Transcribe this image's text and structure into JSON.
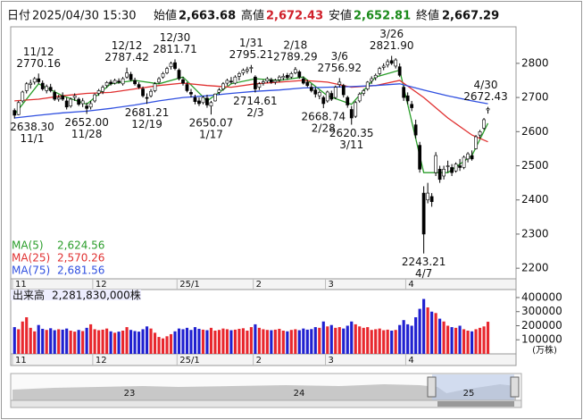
{
  "header": {
    "date_label": "日付",
    "date": "2025/04/30 15:30",
    "items": [
      {
        "label": "始値",
        "value": "2,663.68"
      },
      {
        "label": "高値",
        "value": "2,672.43"
      },
      {
        "label": "安値",
        "value": "2,652.81"
      },
      {
        "label": "終値",
        "value": "2,667.29"
      }
    ]
  },
  "chart_data": {
    "type": "candlestick",
    "categories": [
      "11",
      null,
      null,
      null,
      null,
      null,
      null,
      null,
      null,
      null,
      null,
      null,
      null,
      null,
      null,
      null,
      null,
      null,
      null,
      null,
      "12",
      null,
      null,
      null,
      null,
      null,
      null,
      null,
      null,
      null,
      null,
      null,
      null,
      null,
      null,
      null,
      null,
      null,
      null,
      null,
      null,
      "25/1",
      null,
      null,
      null,
      null,
      null,
      null,
      null,
      null,
      null,
      null,
      null,
      null,
      null,
      null,
      null,
      null,
      null,
      null,
      "2",
      null,
      null,
      null,
      null,
      null,
      null,
      null,
      null,
      null,
      null,
      null,
      null,
      null,
      null,
      null,
      null,
      null,
      "3",
      null,
      null,
      null,
      null,
      null,
      null,
      null,
      null,
      null,
      null,
      null,
      null,
      null,
      null,
      null,
      null,
      null,
      null,
      null,
      "4",
      null,
      null,
      null,
      null,
      null,
      null,
      null,
      null,
      null,
      null,
      null,
      null,
      null,
      null,
      null,
      null,
      null,
      null,
      null,
      null
    ],
    "ohlc": [
      [
        2662,
        2668,
        2638.3,
        2648
      ],
      [
        2650,
        2690,
        2648,
        2685
      ],
      [
        2690,
        2720,
        2685,
        2716
      ],
      [
        2720,
        2745,
        2712,
        2740
      ],
      [
        2738,
        2752,
        2726,
        2742
      ],
      [
        2745,
        2760,
        2738,
        2755
      ],
      [
        2755,
        2770.16,
        2740,
        2746
      ],
      [
        2742,
        2750,
        2720,
        2725
      ],
      [
        2720,
        2738,
        2712,
        2732
      ],
      [
        2730,
        2740,
        2715,
        2720
      ],
      [
        2715,
        2722,
        2690,
        2695
      ],
      [
        2695,
        2708,
        2688,
        2700
      ],
      [
        2705,
        2715,
        2690,
        2695
      ],
      [
        2690,
        2700,
        2665,
        2672
      ],
      [
        2675,
        2700,
        2670,
        2695
      ],
      [
        2700,
        2712,
        2690,
        2705
      ],
      [
        2695,
        2700,
        2675,
        2680
      ],
      [
        2682,
        2698,
        2672,
        2690
      ],
      [
        2675,
        2685,
        2652,
        2668
      ],
      [
        2672,
        2690,
        2665,
        2682
      ],
      [
        2690,
        2712,
        2685,
        2708
      ],
      [
        2712,
        2725,
        2705,
        2720
      ],
      [
        2718,
        2736,
        2710,
        2730
      ],
      [
        2735,
        2748,
        2728,
        2744
      ],
      [
        2745,
        2752,
        2735,
        2740
      ],
      [
        2742,
        2755,
        2738,
        2750
      ],
      [
        2748,
        2756,
        2740,
        2745
      ],
      [
        2740,
        2760,
        2735,
        2755
      ],
      [
        2760,
        2787.42,
        2755,
        2772
      ],
      [
        2768,
        2775,
        2748,
        2752
      ],
      [
        2750,
        2758,
        2735,
        2740
      ],
      [
        2738,
        2745,
        2725,
        2730
      ],
      [
        2725,
        2732,
        2700,
        2705
      ],
      [
        2700,
        2712,
        2681.21,
        2698
      ],
      [
        2705,
        2725,
        2700,
        2718
      ],
      [
        2720,
        2745,
        2715,
        2740
      ],
      [
        2745,
        2760,
        2740,
        2755
      ],
      [
        2760,
        2775,
        2755,
        2770
      ],
      [
        2772,
        2790,
        2768,
        2785
      ],
      [
        2790,
        2805,
        2782,
        2800
      ],
      [
        2802,
        2811.71,
        2780,
        2785
      ],
      [
        2780,
        2785,
        2750,
        2755
      ],
      [
        2752,
        2760,
        2735,
        2742
      ],
      [
        2738,
        2745,
        2715,
        2720
      ],
      [
        2715,
        2725,
        2700,
        2710
      ],
      [
        2700,
        2708,
        2680,
        2688
      ],
      [
        2690,
        2700,
        2675,
        2682
      ],
      [
        2685,
        2705,
        2680,
        2700
      ],
      [
        2698,
        2708,
        2670,
        2678
      ],
      [
        2675,
        2690,
        2650.07,
        2685
      ],
      [
        2690,
        2712,
        2688,
        2710
      ],
      [
        2715,
        2728,
        2708,
        2722
      ],
      [
        2725,
        2745,
        2720,
        2740
      ],
      [
        2742,
        2755,
        2735,
        2750
      ],
      [
        2748,
        2760,
        2740,
        2745
      ],
      [
        2742,
        2765,
        2738,
        2760
      ],
      [
        2762,
        2775,
        2750,
        2770
      ],
      [
        2772,
        2785,
        2765,
        2780
      ],
      [
        2778,
        2790,
        2770,
        2782
      ],
      [
        2785,
        2795.21,
        2772,
        2788
      ],
      [
        2760,
        2765,
        2714.61,
        2725
      ],
      [
        2730,
        2745,
        2722,
        2740
      ],
      [
        2742,
        2752,
        2735,
        2746
      ],
      [
        2748,
        2760,
        2742,
        2755
      ],
      [
        2752,
        2758,
        2740,
        2745
      ],
      [
        2745,
        2755,
        2738,
        2750
      ],
      [
        2752,
        2765,
        2745,
        2760
      ],
      [
        2758,
        2770,
        2750,
        2762
      ],
      [
        2765,
        2772,
        2752,
        2758
      ],
      [
        2760,
        2775,
        2755,
        2770
      ],
      [
        2772,
        2789.29,
        2768,
        2782
      ],
      [
        2775,
        2780,
        2755,
        2760
      ],
      [
        2755,
        2762,
        2738,
        2742
      ],
      [
        2745,
        2752,
        2730,
        2735
      ],
      [
        2730,
        2740,
        2715,
        2720
      ],
      [
        2722,
        2730,
        2700,
        2710
      ],
      [
        2705,
        2720,
        2695,
        2715
      ],
      [
        2700,
        2705,
        2668.74,
        2682
      ],
      [
        2690,
        2720,
        2685,
        2716
      ],
      [
        2712,
        2720,
        2690,
        2695
      ],
      [
        2700,
        2735,
        2695,
        2730
      ],
      [
        2738,
        2756.92,
        2730,
        2745
      ],
      [
        2735,
        2740,
        2700,
        2708
      ],
      [
        2700,
        2705,
        2670,
        2678
      ],
      [
        2665,
        2675,
        2620.35,
        2640
      ],
      [
        2645,
        2690,
        2640,
        2685
      ],
      [
        2690,
        2715,
        2685,
        2710
      ],
      [
        2712,
        2725,
        2705,
        2720
      ],
      [
        2725,
        2748,
        2720,
        2745
      ],
      [
        2748,
        2762,
        2740,
        2755
      ],
      [
        2758,
        2770,
        2750,
        2765
      ],
      [
        2770,
        2790,
        2765,
        2785
      ],
      [
        2788,
        2800,
        2780,
        2792
      ],
      [
        2795,
        2812,
        2788,
        2805
      ],
      [
        2808,
        2821.9,
        2795,
        2800
      ],
      [
        2792,
        2815,
        2785,
        2810
      ],
      [
        2790,
        2800,
        2760,
        2765
      ],
      [
        2730,
        2735,
        2690,
        2700
      ],
      [
        2705,
        2715,
        2680,
        2690
      ],
      [
        2680,
        2690,
        2660,
        2670
      ],
      [
        2620,
        2635,
        2580,
        2590
      ],
      [
        2560,
        2570,
        2480,
        2490
      ],
      [
        2420,
        2440,
        2243.21,
        2300
      ],
      [
        2400,
        2450,
        2390,
        2420
      ],
      [
        2410,
        2420,
        2380,
        2395
      ],
      [
        2480,
        2540,
        2470,
        2530
      ],
      [
        2490,
        2500,
        2450,
        2460
      ],
      [
        2470,
        2500,
        2460,
        2490
      ],
      [
        2500,
        2515,
        2480,
        2500
      ],
      [
        2495,
        2505,
        2470,
        2480
      ],
      [
        2485,
        2510,
        2480,
        2505
      ],
      [
        2500,
        2520,
        2485,
        2495
      ],
      [
        2495,
        2530,
        2490,
        2525
      ],
      [
        2520,
        2540,
        2510,
        2535
      ],
      [
        2530,
        2545,
        2515,
        2520
      ],
      [
        2550,
        2590,
        2548,
        2585
      ],
      [
        2590,
        2605,
        2580,
        2600
      ],
      [
        2610,
        2640,
        2605,
        2635
      ],
      [
        2663.68,
        2672.43,
        2652.81,
        2667.29
      ]
    ],
    "up_color": "#ffffff",
    "down_color": "#000000",
    "ylim": [
      2169,
      2907
    ],
    "yticks": [
      2200,
      2300,
      2400,
      2500,
      2600,
      2700,
      2800
    ],
    "grid": false,
    "series": [
      {
        "name": "MA(5)",
        "color": "#2a9d2a",
        "value_label": "2,624.56",
        "x": [
          0,
          6,
          12,
          18,
          24,
          30,
          36,
          42,
          48,
          54,
          60,
          66,
          72,
          78,
          84,
          90,
          96,
          102,
          108,
          114,
          118
        ],
        "values": [
          2650,
          2740,
          2705,
          2680,
          2740,
          2750,
          2740,
          2760,
          2690,
          2740,
          2755,
          2750,
          2760,
          2705,
          2680,
          2760,
          2780,
          2480,
          2480,
          2530,
          2624.56
        ]
      },
      {
        "name": "MA(25)",
        "color": "#e03030",
        "value_label": "2,570.26",
        "x": [
          0,
          6,
          12,
          18,
          24,
          30,
          36,
          42,
          48,
          54,
          60,
          66,
          72,
          78,
          84,
          90,
          96,
          102,
          108,
          114,
          118
        ],
        "values": [
          2690,
          2695,
          2705,
          2712,
          2715,
          2725,
          2735,
          2742,
          2735,
          2730,
          2740,
          2745,
          2750,
          2745,
          2730,
          2735,
          2750,
          2700,
          2640,
          2590,
          2570.26
        ]
      },
      {
        "name": "MA(75)",
        "color": "#3050e0",
        "value_label": "2,681.56",
        "x": [
          0,
          6,
          12,
          18,
          24,
          30,
          36,
          42,
          48,
          54,
          60,
          66,
          72,
          78,
          84,
          90,
          96,
          102,
          108,
          114,
          118
        ],
        "values": [
          2640,
          2648,
          2655,
          2660,
          2668,
          2678,
          2690,
          2700,
          2705,
          2712,
          2718,
          2722,
          2728,
          2730,
          2732,
          2735,
          2740,
          2722,
          2705,
          2690,
          2681.56
        ]
      }
    ],
    "annotations": [
      {
        "value": 2638.3,
        "label": "2638.30",
        "date": "11/1"
      },
      {
        "value": 2770.16,
        "label": "2770.16",
        "date": "11/12"
      },
      {
        "value": 2652,
        "label": "2652.00",
        "date": "11/28"
      },
      {
        "value": 2787.42,
        "label": "2787.42",
        "date": "12/12"
      },
      {
        "value": 2681.21,
        "label": "2681.21",
        "date": "12/19"
      },
      {
        "value": 2811.71,
        "label": "2811.71",
        "date": "12/30"
      },
      {
        "value": 2650.07,
        "label": "2650.07",
        "date": "1/17"
      },
      {
        "value": 2795.21,
        "label": "2795.21",
        "date": "1/31"
      },
      {
        "value": 2714.61,
        "label": "2714.61",
        "date": "2/3"
      },
      {
        "value": 2789.29,
        "label": "2789.29",
        "date": "2/18"
      },
      {
        "value": 2668.74,
        "label": "2668.74",
        "date": "2/28"
      },
      {
        "value": 2756.92,
        "label": "2756.92",
        "date": "3/6"
      },
      {
        "value": 2620.35,
        "label": "2620.35",
        "date": "3/11"
      },
      {
        "value": 2821.9,
        "label": "2821.90",
        "date": "3/26"
      },
      {
        "value": 2243.21,
        "label": "2243.21",
        "date": "4/7"
      },
      {
        "value": 2672.43,
        "label": "2672.43",
        "date": "4/30"
      }
    ],
    "volume": {
      "label": "出来高",
      "total_label": "2,281,830,000株",
      "unit": "(万株)",
      "up_color": "#e8272e",
      "down_color": "#2020d0",
      "ylim": [
        0,
        457000
      ],
      "yticks": [
        100000,
        200000,
        300000,
        400000
      ],
      "values": [
        190000,
        175000,
        230000,
        260000,
        185000,
        160000,
        205000,
        178000,
        170000,
        182000,
        168000,
        175000,
        172000,
        180000,
        165000,
        158000,
        170000,
        162000,
        185000,
        210000,
        175000,
        168000,
        172000,
        180000,
        160000,
        150000,
        158000,
        165000,
        190000,
        170000,
        162000,
        158000,
        175000,
        195000,
        180000,
        150000,
        120000,
        110000,
        125000,
        140000,
        160000,
        180000,
        175000,
        185000,
        170000,
        190000,
        178000,
        172000,
        168000,
        185000,
        165000,
        170000,
        180000,
        175000,
        168000,
        172000,
        178000,
        182000,
        165000,
        190000,
        210000,
        185000,
        175000,
        170000,
        168000,
        172000,
        178000,
        165000,
        160000,
        170000,
        175000,
        168000,
        180000,
        172000,
        176000,
        190000,
        185000,
        230000,
        195000,
        205000,
        185000,
        190000,
        180000,
        200000,
        230000,
        210000,
        195000,
        185000,
        190000,
        170000,
        175000,
        180000,
        168000,
        172000,
        165000,
        170000,
        205000,
        240000,
        210000,
        200000,
        260000,
        320000,
        390000,
        330000,
        300000,
        290000,
        250000,
        230000,
        200000,
        190000,
        185000,
        200000,
        175000,
        165000,
        160000,
        175000,
        185000,
        195000,
        228183
      ]
    }
  },
  "navigator": {
    "labels": [
      "23",
      "24",
      "25"
    ]
  }
}
